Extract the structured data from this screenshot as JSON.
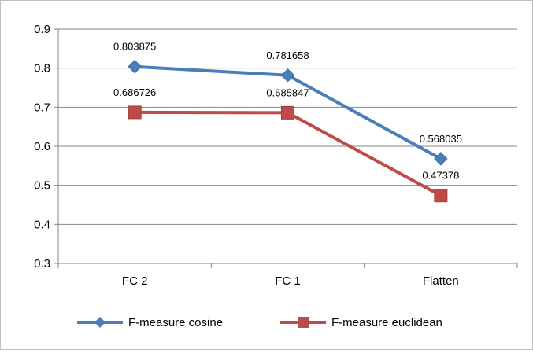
{
  "chart_data": {
    "type": "line",
    "categories": [
      "FC 2",
      "FC 1",
      "Flatten"
    ],
    "ylim": [
      0.3,
      0.9
    ],
    "yticks": [
      "0.3",
      "0.4",
      "0.5",
      "0.6",
      "0.7",
      "0.8",
      "0.9"
    ],
    "grid": true,
    "legend": "bottom",
    "series": [
      {
        "name": "F-measure cosine",
        "values": [
          0.803875,
          0.781658,
          0.568035
        ],
        "labels": [
          "0.803875",
          "0.781658",
          "0.568035"
        ],
        "color": "#4a7ebb",
        "marker": "diamond"
      },
      {
        "name": "F-measure euclidean",
        "values": [
          0.686726,
          0.685847,
          0.47378
        ],
        "labels": [
          "0.686726",
          "0.685847",
          "0.47378"
        ],
        "color": "#be4b48",
        "marker": "square"
      }
    ]
  }
}
